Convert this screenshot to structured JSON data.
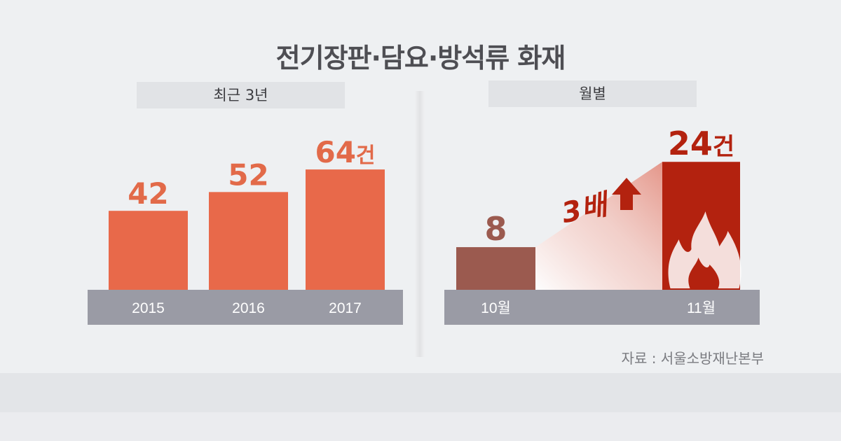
{
  "title": "전기장판·담요·방석류 화재",
  "source": "자료 : 서울소방재난본부",
  "colors": {
    "bar_orange": "#e8694a",
    "bar_oct": "#9b5a4f",
    "bar_nov": "#b3220f",
    "value_orange": "#e26a49",
    "axis_band": "#9a9ba5",
    "background": "#eef0f2"
  },
  "icons": [
    "fire-icon",
    "up-arrow-icon"
  ],
  "chart_data": [
    {
      "type": "bar",
      "title": "최근 3년",
      "categories": [
        "2015",
        "2016",
        "2017"
      ],
      "values": [
        42,
        52,
        64
      ],
      "value_labels": [
        "42",
        "52",
        "64건"
      ],
      "ylim": [
        0,
        70
      ],
      "grid": false
    },
    {
      "type": "bar",
      "title": "월별",
      "categories": [
        "10월",
        "11월"
      ],
      "values": [
        8,
        24
      ],
      "value_labels": [
        "8",
        "24건"
      ],
      "annotation": "3배",
      "ylim": [
        0,
        26
      ],
      "grid": false
    }
  ]
}
